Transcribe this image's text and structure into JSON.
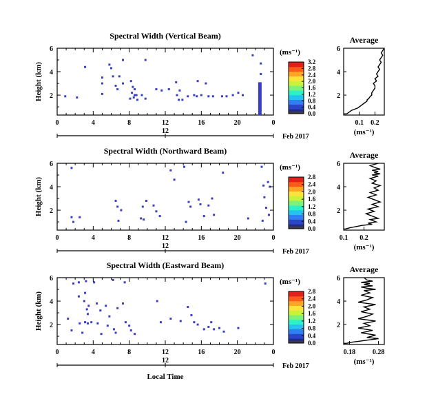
{
  "chart_data": [
    {
      "type": "heatmap",
      "title": "Spectral Width (Vertical Beam)",
      "ylabel": "Height (km)",
      "xlabel": "",
      "x_ticks": [
        "0",
        "4",
        "8",
        "12",
        "16",
        "20",
        "0"
      ],
      "y_ticks": [
        "2",
        "4",
        "6"
      ],
      "xlim": [
        0,
        24
      ],
      "ylim": [
        0.3,
        6
      ],
      "date_ticks": [
        "12"
      ],
      "date_label": "Feb 2017",
      "colorbar_unit": "(ms⁻¹)",
      "colorbar_ticks": [
        "0.0",
        "0.4",
        "0.8",
        "1.2",
        "1.6",
        "2.0",
        "2.4",
        "2.8",
        "3.2"
      ],
      "colorbar_range": [
        0,
        3.2
      ],
      "points": [
        [
          3.1,
          4.4
        ],
        [
          5.8,
          4.6
        ],
        [
          6.0,
          4.3
        ],
        [
          7.3,
          5.0
        ],
        [
          9.8,
          5.0
        ],
        [
          5.0,
          3.5
        ],
        [
          5.0,
          3.0
        ],
        [
          6.2,
          3.6
        ],
        [
          6.9,
          3.6
        ],
        [
          6.5,
          2.8
        ],
        [
          6.7,
          2.5
        ],
        [
          7.3,
          3.0
        ],
        [
          8.2,
          3.2
        ],
        [
          8.4,
          2.7
        ],
        [
          8.6,
          2.5
        ],
        [
          8.3,
          2.2
        ],
        [
          8.6,
          2.0
        ],
        [
          8.8,
          2.0
        ],
        [
          8.5,
          1.8
        ],
        [
          8.1,
          1.7
        ],
        [
          8.9,
          1.6
        ],
        [
          9.4,
          2.0
        ],
        [
          9.8,
          1.7
        ],
        [
          11.0,
          2.5
        ],
        [
          11.6,
          2.4
        ],
        [
          12.4,
          2.5
        ],
        [
          13.2,
          3.1
        ],
        [
          13.6,
          2.4
        ],
        [
          13.3,
          2.0
        ],
        [
          13.5,
          1.6
        ],
        [
          13.9,
          1.6
        ],
        [
          14.5,
          1.9
        ],
        [
          15.2,
          2.0
        ],
        [
          15.5,
          1.9
        ],
        [
          16.0,
          2.0
        ],
        [
          16.8,
          1.9
        ],
        [
          17.3,
          1.9
        ],
        [
          18.3,
          1.9
        ],
        [
          18.8,
          1.9
        ],
        [
          19.5,
          2.0
        ],
        [
          20.1,
          2.2
        ],
        [
          20.6,
          2.0
        ],
        [
          15.6,
          3.2
        ],
        [
          16.5,
          3.0
        ],
        [
          21.7,
          5.4
        ],
        [
          22.6,
          4.7
        ],
        [
          22.6,
          3.8
        ],
        [
          0.9,
          1.9
        ],
        [
          2.2,
          1.8
        ],
        [
          5.0,
          2.1
        ]
      ],
      "column": {
        "x": 22.5,
        "from": 0.3,
        "to": 3.1
      },
      "value": 0.3
    },
    {
      "type": "line",
      "title": "Average",
      "xlabel": "(ms⁻¹)",
      "x_ticks": [
        "0.1",
        "0.2"
      ],
      "xlim": [
        0,
        0.26
      ],
      "y_ticks": [
        "2",
        "4",
        "6"
      ],
      "ylim": [
        0.3,
        6
      ],
      "x": [
        0.02,
        0.03,
        0.04,
        0.05,
        0.07,
        0.09,
        0.1,
        0.11,
        0.12,
        0.13,
        0.14,
        0.15,
        0.15,
        0.16,
        0.17,
        0.18,
        0.18,
        0.19,
        0.2,
        0.2,
        0.19,
        0.21,
        0.2,
        0.22,
        0.21,
        0.22,
        0.23,
        0.22,
        0.23,
        0.24,
        0.23,
        0.24,
        0.25,
        0.24,
        0.25,
        0.26
      ],
      "y": [
        0.4,
        0.5,
        0.6,
        0.7,
        0.8,
        0.9,
        1.0,
        1.1,
        1.2,
        1.3,
        1.4,
        1.5,
        1.6,
        1.7,
        1.9,
        2.0,
        2.2,
        2.4,
        2.6,
        2.8,
        3.0,
        3.2,
        3.4,
        3.6,
        3.8,
        4.0,
        4.2,
        4.4,
        4.6,
        4.8,
        5.0,
        5.2,
        5.4,
        5.6,
        5.8,
        6.0
      ]
    },
    {
      "type": "heatmap",
      "title": "Spectral Width (Northward Beam)",
      "ylabel": "Height (km)",
      "xlabel": "",
      "x_ticks": [
        "0",
        "4",
        "8",
        "12",
        "16",
        "20",
        "0"
      ],
      "y_ticks": [
        "2",
        "4",
        "6"
      ],
      "xlim": [
        0,
        24
      ],
      "ylim": [
        0.3,
        6
      ],
      "date_ticks": [
        "12"
      ],
      "date_label": "Feb 2017",
      "colorbar_unit": "(ms⁻¹)",
      "colorbar_ticks": [
        "0.0",
        "0.4",
        "0.8",
        "1.2",
        "1.6",
        "2.0",
        "2.4",
        "2.8"
      ],
      "colorbar_range": [
        0,
        2.8
      ],
      "points": [
        [
          1.6,
          5.6
        ],
        [
          1.6,
          1.4
        ],
        [
          1.8,
          1.0
        ],
        [
          2.5,
          1.4
        ],
        [
          6.5,
          2.8
        ],
        [
          6.7,
          2.3
        ],
        [
          7.1,
          2.0
        ],
        [
          6.8,
          1.1
        ],
        [
          9.5,
          2.3
        ],
        [
          9.9,
          2.8
        ],
        [
          9.3,
          1.3
        ],
        [
          9.6,
          1.2
        ],
        [
          10.7,
          2.4
        ],
        [
          11.0,
          1.9
        ],
        [
          11.4,
          1.5
        ],
        [
          12.6,
          5.4
        ],
        [
          13.0,
          4.6
        ],
        [
          14.1,
          5.7
        ],
        [
          14.6,
          2.7
        ],
        [
          14.8,
          2.3
        ],
        [
          14.3,
          1.0
        ],
        [
          15.7,
          2.9
        ],
        [
          15.9,
          2.5
        ],
        [
          16.3,
          1.5
        ],
        [
          17.2,
          3.0
        ],
        [
          16.8,
          2.4
        ],
        [
          17.4,
          1.6
        ],
        [
          18.4,
          5.2
        ],
        [
          21.2,
          1.3
        ],
        [
          22.7,
          5.7
        ],
        [
          22.9,
          4.1
        ],
        [
          23.4,
          4.4
        ],
        [
          23.6,
          4.0
        ],
        [
          23.0,
          3.1
        ],
        [
          23.2,
          2.2
        ],
        [
          23.5,
          1.6
        ],
        [
          22.8,
          1.1
        ]
      ],
      "value": 0.3
    },
    {
      "type": "line",
      "title": "Average",
      "xlabel": "(ms⁻¹)",
      "x_ticks": [
        "0.1",
        "0.2"
      ],
      "xlim": [
        0.1,
        0.3
      ],
      "y_ticks": [
        "2",
        "4",
        "6"
      ],
      "ylim": [
        0.3,
        6
      ],
      "x": [
        0.11,
        0.13,
        0.16,
        0.19,
        0.24,
        0.22,
        0.26,
        0.23,
        0.27,
        0.24,
        0.21,
        0.25,
        0.22,
        0.27,
        0.24,
        0.28,
        0.25,
        0.22,
        0.26,
        0.23,
        0.27,
        0.25,
        0.28,
        0.24,
        0.26,
        0.23,
        0.27,
        0.24,
        0.28,
        0.25,
        0.27,
        0.24,
        0.28,
        0.26,
        0.23,
        0.27
      ],
      "y": [
        0.4,
        0.5,
        0.6,
        0.7,
        0.8,
        0.9,
        1.0,
        1.2,
        1.3,
        1.5,
        1.7,
        1.9,
        2.1,
        2.3,
        2.5,
        2.7,
        2.9,
        3.1,
        3.3,
        3.5,
        3.7,
        3.9,
        4.1,
        4.3,
        4.5,
        4.7,
        4.9,
        5.0,
        5.1,
        5.2,
        5.3,
        5.4,
        5.5,
        5.6,
        5.8,
        6.0
      ]
    },
    {
      "type": "heatmap",
      "title": "Spectral Width (Eastward Beam)",
      "ylabel": "Height (km)",
      "xlabel": "Local Time",
      "x_ticks": [
        "0",
        "4",
        "8",
        "12",
        "16",
        "20",
        "0"
      ],
      "y_ticks": [
        "2",
        "4",
        "6"
      ],
      "xlim": [
        0,
        24
      ],
      "ylim": [
        0.3,
        6
      ],
      "date_ticks": [
        "12"
      ],
      "date_label": "Feb 2017",
      "colorbar_unit": "(ms⁻¹)",
      "colorbar_ticks": [
        "0.0",
        "0.4",
        "0.8",
        "1.2",
        "1.6",
        "2.0",
        "2.4",
        "2.8"
      ],
      "colorbar_range": [
        0,
        2.8
      ],
      "points": [
        [
          1.8,
          5.5
        ],
        [
          2.4,
          5.6
        ],
        [
          3.2,
          5.7
        ],
        [
          4.1,
          5.6
        ],
        [
          6.2,
          5.8
        ],
        [
          7.5,
          5.6
        ],
        [
          2.4,
          4.4
        ],
        [
          3.0,
          4.0
        ],
        [
          3.1,
          4.7
        ],
        [
          3.5,
          3.6
        ],
        [
          3.3,
          3.3
        ],
        [
          3.4,
          2.9
        ],
        [
          4.4,
          3.8
        ],
        [
          4.8,
          3.2
        ],
        [
          5.4,
          3.6
        ],
        [
          5.8,
          2.7
        ],
        [
          6.7,
          3.4
        ],
        [
          7.3,
          3.8
        ],
        [
          1.2,
          2.5
        ],
        [
          2.5,
          2.1
        ],
        [
          3.1,
          2.2
        ],
        [
          3.4,
          2.1
        ],
        [
          3.8,
          2.2
        ],
        [
          4.5,
          2.1
        ],
        [
          5.6,
          1.9
        ],
        [
          6.3,
          1.6
        ],
        [
          6.5,
          1.3
        ],
        [
          7.6,
          2.2
        ],
        [
          8.0,
          1.9
        ],
        [
          8.2,
          1.5
        ],
        [
          1.6,
          1.5
        ],
        [
          2.8,
          1.3
        ],
        [
          4.9,
          1.2
        ],
        [
          8.6,
          1.2
        ],
        [
          11.1,
          4.0
        ],
        [
          11.5,
          2.2
        ],
        [
          12.6,
          2.5
        ],
        [
          13.7,
          2.3
        ],
        [
          14.5,
          3.5
        ],
        [
          14.9,
          2.8
        ],
        [
          15.2,
          2.2
        ],
        [
          15.6,
          2.0
        ],
        [
          16.3,
          1.6
        ],
        [
          16.8,
          1.8
        ],
        [
          17.1,
          2.2
        ],
        [
          17.4,
          1.6
        ],
        [
          18.0,
          1.7
        ],
        [
          18.5,
          1.4
        ],
        [
          20.1,
          1.7
        ],
        [
          23.1,
          5.5
        ]
      ],
      "value": 0.3
    },
    {
      "type": "line",
      "title": "Average",
      "xlabel": "(ms⁻¹)",
      "x_ticks": [
        "0.18",
        "0.28"
      ],
      "xlim": [
        0.16,
        0.3
      ],
      "y_ticks": [
        "2",
        "4",
        "6"
      ],
      "ylim": [
        0.3,
        6
      ],
      "x": [
        0.17,
        0.19,
        0.22,
        0.25,
        0.28,
        0.24,
        0.27,
        0.22,
        0.26,
        0.21,
        0.25,
        0.23,
        0.27,
        0.21,
        0.24,
        0.26,
        0.22,
        0.25,
        0.23,
        0.27,
        0.21,
        0.24,
        0.26,
        0.22,
        0.25,
        0.23,
        0.27,
        0.24,
        0.22,
        0.26,
        0.23,
        0.25,
        0.22,
        0.26,
        0.24,
        0.23
      ],
      "y": [
        0.4,
        0.5,
        0.6,
        0.7,
        0.8,
        0.9,
        1.1,
        1.3,
        1.5,
        1.7,
        1.9,
        2.1,
        2.3,
        2.5,
        2.7,
        2.9,
        3.1,
        3.3,
        3.5,
        3.7,
        3.9,
        4.1,
        4.3,
        4.5,
        4.7,
        4.9,
        5.0,
        5.1,
        5.2,
        5.3,
        5.4,
        5.5,
        5.6,
        5.7,
        5.8,
        6.0
      ]
    }
  ]
}
